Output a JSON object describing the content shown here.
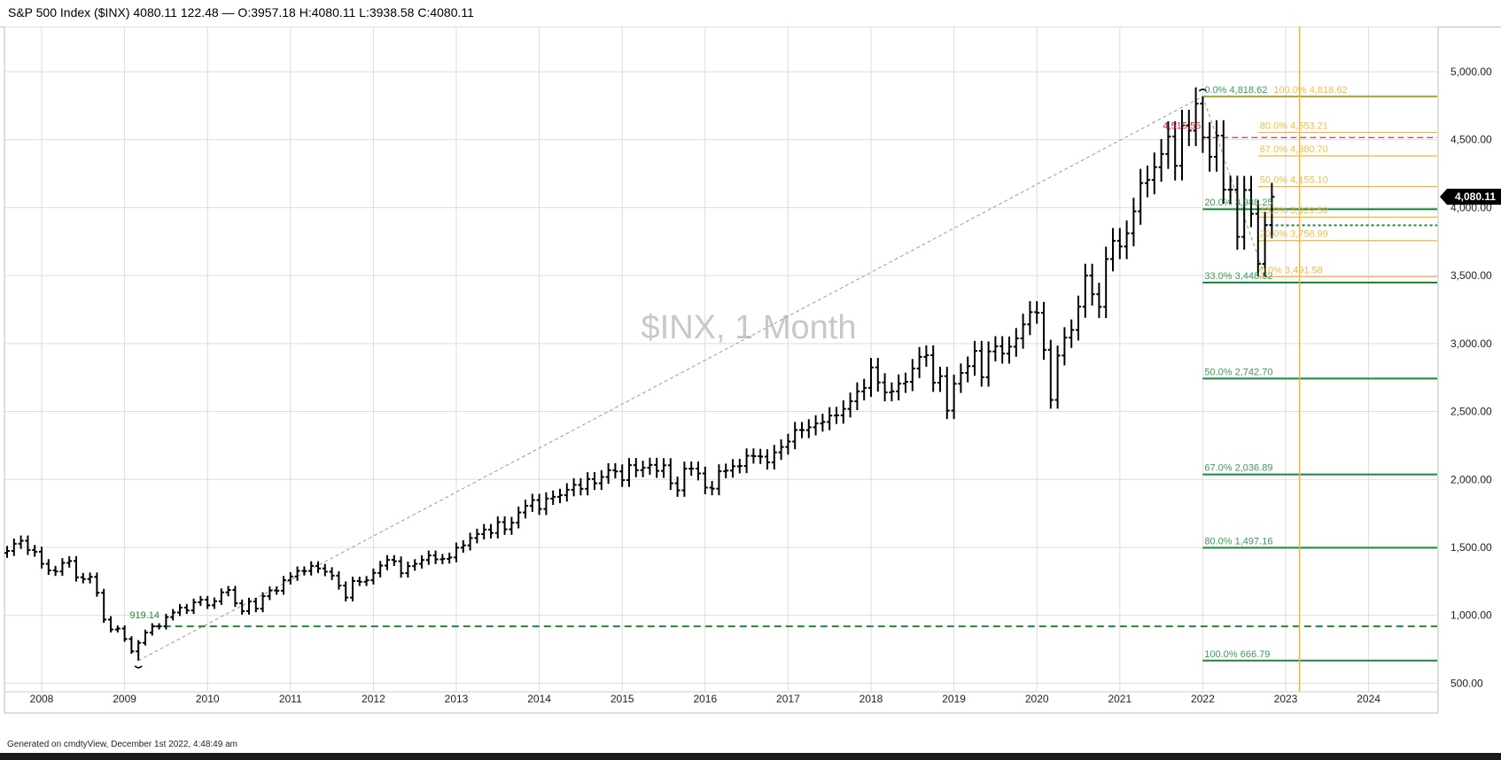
{
  "header": {
    "title": "S&P 500 Index ($INX) 4080.11 122.48 — O:3957.18 H:4080.11 L:3938.58 C:4080.11"
  },
  "footer": {
    "text": "Generated on cmdtyView, December 1st 2022, 4:48:49 am"
  },
  "colors": {
    "bars": "#000000",
    "fib_green": "#1a8a3a",
    "fib_orange": "#f5b335",
    "marker_red": "#e0243c",
    "vertical_line": "#f5b335",
    "watermark": "#c8c8c8",
    "grid": "#dddddd"
  },
  "chart_data": {
    "type": "ohlc",
    "watermark": "$INX, 1 Month",
    "x_tick_labels": [
      "2008",
      "2009",
      "2010",
      "2011",
      "2012",
      "2013",
      "2014",
      "2015",
      "2016",
      "2017",
      "2018",
      "2019",
      "2020",
      "2021",
      "2022",
      "2023",
      "2024"
    ],
    "y_tick_labels": [
      "500.00",
      "1,000.00",
      "1,500.00",
      "2,000.00",
      "2,500.00",
      "3,000.00",
      "3,500.00",
      "4,000.00",
      "4,500.00",
      "5,000.00"
    ],
    "y_ticks": [
      500,
      1000,
      1500,
      2000,
      2500,
      3000,
      3500,
      4000,
      4500,
      5000
    ],
    "ylim": [
      470,
      5150
    ],
    "xlim": [
      "2007-08",
      "2024-11"
    ],
    "grid": true,
    "price_marker": {
      "value": 4080.11,
      "label": "4,080.11"
    },
    "low_marker": {
      "date": "2009-03",
      "value": 666.79
    },
    "high_marker": {
      "date": "2022-01",
      "value": 4818.62
    },
    "trend_line": {
      "from": {
        "date": "2009-03",
        "value": 666.79
      },
      "to": {
        "date": "2022-01",
        "value": 4818.62
      }
    },
    "green_dashed_level": {
      "value": 919.14,
      "label": "919.14"
    },
    "red_dashed_level": {
      "value": 4515.55,
      "label": "4,515.55"
    },
    "green_fib_levels": [
      {
        "pct": "0.0%",
        "value": 4818.62,
        "label": "0.0% 4,818.62"
      },
      {
        "pct": "20.0%",
        "value": 3988.25,
        "label": "20.0% 3,988.25"
      },
      {
        "pct": "33.0%",
        "value": 3448.52,
        "label": "33.0% 3,448.52"
      },
      {
        "pct": "50.0%",
        "value": 2742.7,
        "label": "50.0% 2,742.70"
      },
      {
        "pct": "67.0%",
        "value": 2036.89,
        "label": "67.0% 2,036.89"
      },
      {
        "pct": "80.0%",
        "value": 1497.16,
        "label": "80.0% 1,497.16"
      },
      {
        "pct": "100.0%",
        "value": 666.79,
        "label": "100.0% 666.79"
      }
    ],
    "orange_fib_levels": [
      {
        "pct": "100.0%",
        "value": 4818.62,
        "label": "100.0% 4,818.62"
      },
      {
        "pct": "80.0%",
        "value": 4553.21,
        "label": "80.0% 4,553.21"
      },
      {
        "pct": "67.0%",
        "value": 4380.7,
        "label": "67.0% 4,380.70"
      },
      {
        "pct": "50.0%",
        "value": 4155.1,
        "label": "50.0% 4,155.10"
      },
      {
        "pct": "33.0%",
        "value": 3929.5,
        "label": "33.0% 3,929.50"
      },
      {
        "pct": "20.0%",
        "value": 3756.99,
        "label": "20.0% 3,756.99"
      },
      {
        "pct": "0.0%",
        "value": 3491.58,
        "label": "0.0% 3,491.58"
      }
    ],
    "dotted_level": {
      "value": 3870
    },
    "vertical_line_date": "2023-03",
    "close_series": [
      [
        "2007-08",
        1474
      ],
      [
        "2007-09",
        1527
      ],
      [
        "2007-10",
        1549
      ],
      [
        "2007-11",
        1481
      ],
      [
        "2007-12",
        1468
      ],
      [
        "2008-01",
        1379
      ],
      [
        "2008-02",
        1331
      ],
      [
        "2008-03",
        1323
      ],
      [
        "2008-04",
        1386
      ],
      [
        "2008-05",
        1400
      ],
      [
        "2008-06",
        1280
      ],
      [
        "2008-07",
        1267
      ],
      [
        "2008-08",
        1283
      ],
      [
        "2008-09",
        1166
      ],
      [
        "2008-10",
        969
      ],
      [
        "2008-11",
        896
      ],
      [
        "2008-12",
        903
      ],
      [
        "2009-01",
        826
      ],
      [
        "2009-02",
        735
      ],
      [
        "2009-03",
        798
      ],
      [
        "2009-04",
        873
      ],
      [
        "2009-05",
        919
      ],
      [
        "2009-06",
        919
      ],
      [
        "2009-07",
        987
      ],
      [
        "2009-08",
        1021
      ],
      [
        "2009-09",
        1057
      ],
      [
        "2009-10",
        1036
      ],
      [
        "2009-11",
        1096
      ],
      [
        "2009-12",
        1115
      ],
      [
        "2010-01",
        1074
      ],
      [
        "2010-02",
        1104
      ],
      [
        "2010-03",
        1169
      ],
      [
        "2010-04",
        1187
      ],
      [
        "2010-05",
        1089
      ],
      [
        "2010-06",
        1031
      ],
      [
        "2010-07",
        1102
      ],
      [
        "2010-08",
        1049
      ],
      [
        "2010-09",
        1141
      ],
      [
        "2010-10",
        1183
      ],
      [
        "2010-11",
        1181
      ],
      [
        "2010-12",
        1258
      ],
      [
        "2011-01",
        1286
      ],
      [
        "2011-02",
        1327
      ],
      [
        "2011-03",
        1326
      ],
      [
        "2011-04",
        1364
      ],
      [
        "2011-05",
        1345
      ],
      [
        "2011-06",
        1321
      ],
      [
        "2011-07",
        1292
      ],
      [
        "2011-08",
        1219
      ],
      [
        "2011-09",
        1131
      ],
      [
        "2011-10",
        1253
      ],
      [
        "2011-11",
        1247
      ],
      [
        "2011-12",
        1258
      ],
      [
        "2012-01",
        1312
      ],
      [
        "2012-02",
        1366
      ],
      [
        "2012-03",
        1408
      ],
      [
        "2012-04",
        1398
      ],
      [
        "2012-05",
        1310
      ],
      [
        "2012-06",
        1362
      ],
      [
        "2012-07",
        1379
      ],
      [
        "2012-08",
        1407
      ],
      [
        "2012-09",
        1441
      ],
      [
        "2012-10",
        1412
      ],
      [
        "2012-11",
        1416
      ],
      [
        "2012-12",
        1426
      ],
      [
        "2013-01",
        1498
      ],
      [
        "2013-02",
        1515
      ],
      [
        "2013-03",
        1569
      ],
      [
        "2013-04",
        1598
      ],
      [
        "2013-05",
        1631
      ],
      [
        "2013-06",
        1606
      ],
      [
        "2013-07",
        1686
      ],
      [
        "2013-08",
        1633
      ],
      [
        "2013-09",
        1682
      ],
      [
        "2013-10",
        1757
      ],
      [
        "2013-11",
        1806
      ],
      [
        "2013-12",
        1848
      ],
      [
        "2014-01",
        1783
      ],
      [
        "2014-02",
        1859
      ],
      [
        "2014-03",
        1872
      ],
      [
        "2014-04",
        1884
      ],
      [
        "2014-05",
        1924
      ],
      [
        "2014-06",
        1960
      ],
      [
        "2014-07",
        1931
      ],
      [
        "2014-08",
        2003
      ],
      [
        "2014-09",
        1972
      ],
      [
        "2014-10",
        2018
      ],
      [
        "2014-11",
        2068
      ],
      [
        "2014-12",
        2059
      ],
      [
        "2015-01",
        1995
      ],
      [
        "2015-02",
        2105
      ],
      [
        "2015-03",
        2068
      ],
      [
        "2015-04",
        2086
      ],
      [
        "2015-05",
        2107
      ],
      [
        "2015-06",
        2063
      ],
      [
        "2015-07",
        2104
      ],
      [
        "2015-08",
        1972
      ],
      [
        "2015-09",
        1920
      ],
      [
        "2015-10",
        2079
      ],
      [
        "2015-11",
        2080
      ],
      [
        "2015-12",
        2044
      ],
      [
        "2016-01",
        1940
      ],
      [
        "2016-02",
        1932
      ],
      [
        "2016-03",
        2060
      ],
      [
        "2016-04",
        2065
      ],
      [
        "2016-05",
        2097
      ],
      [
        "2016-06",
        2099
      ],
      [
        "2016-07",
        2174
      ],
      [
        "2016-08",
        2171
      ],
      [
        "2016-09",
        2168
      ],
      [
        "2016-10",
        2126
      ],
      [
        "2016-11",
        2199
      ],
      [
        "2016-12",
        2239
      ],
      [
        "2017-01",
        2279
      ],
      [
        "2017-02",
        2364
      ],
      [
        "2017-03",
        2363
      ],
      [
        "2017-04",
        2384
      ],
      [
        "2017-05",
        2412
      ],
      [
        "2017-06",
        2423
      ],
      [
        "2017-07",
        2470
      ],
      [
        "2017-08",
        2472
      ],
      [
        "2017-09",
        2519
      ],
      [
        "2017-10",
        2575
      ],
      [
        "2017-11",
        2648
      ],
      [
        "2017-12",
        2674
      ],
      [
        "2018-01",
        2824
      ],
      [
        "2018-02",
        2714
      ],
      [
        "2018-03",
        2641
      ],
      [
        "2018-04",
        2648
      ],
      [
        "2018-05",
        2705
      ],
      [
        "2018-06",
        2718
      ],
      [
        "2018-07",
        2816
      ],
      [
        "2018-08",
        2902
      ],
      [
        "2018-09",
        2914
      ],
      [
        "2018-10",
        2712
      ],
      [
        "2018-11",
        2760
      ],
      [
        "2018-12",
        2507
      ],
      [
        "2019-01",
        2704
      ],
      [
        "2019-02",
        2784
      ],
      [
        "2019-03",
        2834
      ],
      [
        "2019-04",
        2946
      ],
      [
        "2019-05",
        2752
      ],
      [
        "2019-06",
        2942
      ],
      [
        "2019-07",
        2980
      ],
      [
        "2019-08",
        2926
      ],
      [
        "2019-09",
        2977
      ],
      [
        "2019-10",
        3038
      ],
      [
        "2019-11",
        3141
      ],
      [
        "2019-12",
        3231
      ],
      [
        "2020-01",
        3226
      ],
      [
        "2020-02",
        2954
      ],
      [
        "2020-03",
        2585
      ],
      [
        "2020-04",
        2912
      ],
      [
        "2020-05",
        3044
      ],
      [
        "2020-06",
        3100
      ],
      [
        "2020-07",
        3271
      ],
      [
        "2020-08",
        3500
      ],
      [
        "2020-09",
        3363
      ],
      [
        "2020-10",
        3270
      ],
      [
        "2020-11",
        3622
      ],
      [
        "2020-12",
        3756
      ],
      [
        "2021-01",
        3714
      ],
      [
        "2021-02",
        3811
      ],
      [
        "2021-03",
        3973
      ],
      [
        "2021-04",
        4181
      ],
      [
        "2021-05",
        4204
      ],
      [
        "2021-06",
        4298
      ],
      [
        "2021-07",
        4395
      ],
      [
        "2021-08",
        4523
      ],
      [
        "2021-09",
        4308
      ],
      [
        "2021-10",
        4605
      ],
      [
        "2021-11",
        4567
      ],
      [
        "2021-12",
        4766
      ],
      [
        "2022-01",
        4516
      ],
      [
        "2022-02",
        4374
      ],
      [
        "2022-03",
        4530
      ],
      [
        "2022-04",
        4132
      ],
      [
        "2022-05",
        4132
      ],
      [
        "2022-06",
        3785
      ],
      [
        "2022-07",
        4130
      ],
      [
        "2022-08",
        3955
      ],
      [
        "2022-09",
        3586
      ],
      [
        "2022-10",
        3872
      ],
      [
        "2022-11",
        4080
      ]
    ],
    "high_marker_override": {
      "2022-01": 4818.62
    },
    "low_marker_override": {
      "2009-03": 666.79,
      "2022-10": 3491.58
    }
  }
}
